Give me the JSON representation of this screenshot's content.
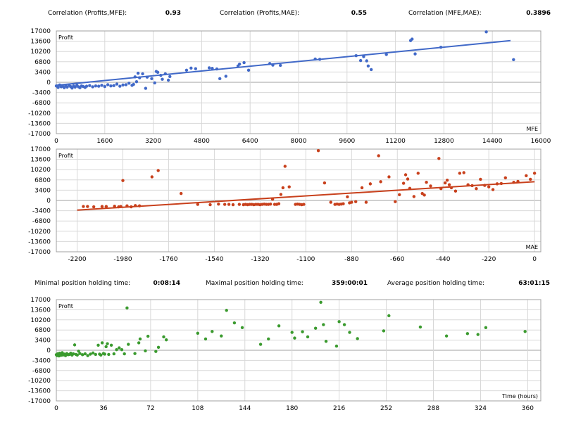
{
  "stats_top": [
    {
      "label": "Correlation (Profits,MFE):",
      "value": "0.93"
    },
    {
      "label": "Correlation (Profits,MAE):",
      "value": "0.55"
    },
    {
      "label": "Correlation (MFE,MAE):",
      "value": "0.3896"
    }
  ],
  "stats_mid": [
    {
      "label": "Minimal position holding time:",
      "value": "0:08:14"
    },
    {
      "label": "Maximal position holding time:",
      "value": "359:00:01"
    },
    {
      "label": "Average position holding time:",
      "value": "63:01:15"
    }
  ],
  "colors": {
    "mfe": "#4169c8",
    "mae": "#c8401c",
    "time": "#3a9a2e",
    "grid": "#d8d8d8",
    "axis": "#a0a0a0"
  },
  "chart_data": [
    {
      "type": "scatter",
      "ylabel": "Profit",
      "xlabel": "MFE",
      "xlim": [
        0,
        16000
      ],
      "ylim": [
        -17000,
        17000
      ],
      "xticks": [
        0,
        1600,
        3200,
        4800,
        6400,
        8000,
        9600,
        11200,
        12800,
        14400,
        16000
      ],
      "yticks": [
        17000,
        13600,
        10200,
        6800,
        3400,
        0,
        -3400,
        -6800,
        -10200,
        -13600,
        -17000
      ],
      "trendline": [
        [
          0,
          -1000
        ],
        [
          15000,
          13800
        ]
      ],
      "points": [
        [
          0,
          -1200
        ],
        [
          60,
          -1700
        ],
        [
          110,
          -900
        ],
        [
          160,
          -1500
        ],
        [
          210,
          -1300
        ],
        [
          260,
          -1800
        ],
        [
          310,
          -1100
        ],
        [
          360,
          -1600
        ],
        [
          420,
          -1000
        ],
        [
          470,
          -1400
        ],
        [
          520,
          -1900
        ],
        [
          570,
          -1200
        ],
        [
          620,
          -1600
        ],
        [
          680,
          -1000
        ],
        [
          730,
          -1500
        ],
        [
          780,
          -1800
        ],
        [
          830,
          -1200
        ],
        [
          890,
          -1400
        ],
        [
          950,
          -1700
        ],
        [
          1000,
          -1300
        ],
        [
          1100,
          -1100
        ],
        [
          1200,
          -1500
        ],
        [
          1300,
          -1200
        ],
        [
          1400,
          -1300
        ],
        [
          1500,
          -1000
        ],
        [
          1600,
          -1400
        ],
        [
          1700,
          -800
        ],
        [
          1800,
          -1200
        ],
        [
          1900,
          -1100
        ],
        [
          2000,
          -600
        ],
        [
          2100,
          -1300
        ],
        [
          2200,
          -900
        ],
        [
          2300,
          -800
        ],
        [
          2400,
          -300
        ],
        [
          2500,
          -1000
        ],
        [
          2550,
          -700
        ],
        [
          2600,
          1800
        ],
        [
          2650,
          200
        ],
        [
          2700,
          3000
        ],
        [
          2750,
          1500
        ],
        [
          2850,
          2800
        ],
        [
          2950,
          -2000
        ],
        [
          3000,
          1700
        ],
        [
          3150,
          1200
        ],
        [
          3250,
          -200
        ],
        [
          3300,
          3600
        ],
        [
          3350,
          3300
        ],
        [
          3450,
          2300
        ],
        [
          3500,
          1000
        ],
        [
          3600,
          2800
        ],
        [
          3700,
          700
        ],
        [
          3750,
          1900
        ],
        [
          4300,
          4000
        ],
        [
          4450,
          4700
        ],
        [
          4600,
          4500
        ],
        [
          5050,
          4800
        ],
        [
          5150,
          4600
        ],
        [
          5300,
          4400
        ],
        [
          5400,
          1200
        ],
        [
          5600,
          2000
        ],
        [
          6000,
          5400
        ],
        [
          6050,
          6000
        ],
        [
          6200,
          6500
        ],
        [
          6350,
          4000
        ],
        [
          7050,
          6200
        ],
        [
          7150,
          5700
        ],
        [
          7400,
          5600
        ],
        [
          8550,
          7700
        ],
        [
          8700,
          7600
        ],
        [
          9900,
          8800
        ],
        [
          10050,
          7200
        ],
        [
          10150,
          8500
        ],
        [
          10250,
          7100
        ],
        [
          10300,
          5400
        ],
        [
          10400,
          4200
        ],
        [
          10900,
          9200
        ],
        [
          11700,
          13800
        ],
        [
          11750,
          14300
        ],
        [
          11850,
          9400
        ],
        [
          12700,
          11600
        ],
        [
          14200,
          16700
        ],
        [
          15100,
          7500
        ]
      ]
    },
    {
      "type": "scatter",
      "ylabel": "Profit",
      "xlabel": "MAE",
      "xlim": [
        -2300,
        30
      ],
      "ylim": [
        -17000,
        17000
      ],
      "xticks": [
        -2200,
        -1980,
        -1760,
        -1540,
        -1320,
        -1100,
        -880,
        -660,
        -440,
        -220,
        0
      ],
      "yticks": [
        17000,
        13600,
        10200,
        6800,
        3400,
        0,
        -3400,
        -6800,
        -10200,
        -13600,
        -17000
      ],
      "trendline": [
        [
          -2200,
          -3200
        ],
        [
          0,
          6200
        ]
      ],
      "points": [
        [
          -2170,
          -2000
        ],
        [
          -2150,
          -2000
        ],
        [
          -2120,
          -2100
        ],
        [
          -2080,
          -2000
        ],
        [
          -2060,
          -2000
        ],
        [
          -2020,
          -1900
        ],
        [
          -2000,
          -2100
        ],
        [
          -1990,
          -2000
        ],
        [
          -1960,
          -1800
        ],
        [
          -1940,
          -2100
        ],
        [
          -1920,
          -1700
        ],
        [
          -1900,
          -1800
        ],
        [
          -1980,
          6600
        ],
        [
          -1840,
          7800
        ],
        [
          -1810,
          9900
        ],
        [
          -1700,
          2300
        ],
        [
          -1620,
          -1300
        ],
        [
          -1560,
          -1400
        ],
        [
          -1520,
          -1200
        ],
        [
          -1490,
          -1300
        ],
        [
          -1470,
          -1300
        ],
        [
          -1450,
          -1400
        ],
        [
          -1420,
          -1300
        ],
        [
          -1400,
          -1400
        ],
        [
          -1390,
          -1300
        ],
        [
          -1380,
          -1400
        ],
        [
          -1370,
          -1300
        ],
        [
          -1360,
          -1300
        ],
        [
          -1350,
          -1400
        ],
        [
          -1340,
          -1300
        ],
        [
          -1330,
          -1300
        ],
        [
          -1320,
          -1400
        ],
        [
          -1310,
          -1300
        ],
        [
          -1300,
          -1200
        ],
        [
          -1290,
          -1300
        ],
        [
          -1280,
          -1300
        ],
        [
          -1270,
          -1200
        ],
        [
          -1260,
          400
        ],
        [
          -1250,
          -1300
        ],
        [
          -1240,
          -1300
        ],
        [
          -1230,
          -1100
        ],
        [
          -1220,
          2000
        ],
        [
          -1210,
          4200
        ],
        [
          -1200,
          11300
        ],
        [
          -1180,
          4500
        ],
        [
          -1150,
          -1300
        ],
        [
          -1140,
          -1200
        ],
        [
          -1130,
          -1300
        ],
        [
          -1120,
          -1400
        ],
        [
          -1110,
          -1300
        ],
        [
          -1040,
          16500
        ],
        [
          -1010,
          5800
        ],
        [
          -980,
          -600
        ],
        [
          -960,
          -1300
        ],
        [
          -950,
          -1200
        ],
        [
          -940,
          -1300
        ],
        [
          -930,
          -1200
        ],
        [
          -920,
          -1100
        ],
        [
          -900,
          1200
        ],
        [
          -890,
          -800
        ],
        [
          -880,
          -600
        ],
        [
          -860,
          -400
        ],
        [
          -830,
          4200
        ],
        [
          -810,
          -600
        ],
        [
          -790,
          5500
        ],
        [
          -750,
          14800
        ],
        [
          -740,
          6200
        ],
        [
          -700,
          7800
        ],
        [
          -670,
          -400
        ],
        [
          -650,
          1900
        ],
        [
          -630,
          5700
        ],
        [
          -620,
          8500
        ],
        [
          -610,
          7100
        ],
        [
          -600,
          4000
        ],
        [
          -580,
          1300
        ],
        [
          -560,
          9000
        ],
        [
          -540,
          2300
        ],
        [
          -530,
          1800
        ],
        [
          -520,
          6000
        ],
        [
          -500,
          4800
        ],
        [
          -460,
          13900
        ],
        [
          -450,
          3900
        ],
        [
          -430,
          5800
        ],
        [
          -420,
          6700
        ],
        [
          -410,
          5200
        ],
        [
          -400,
          4200
        ],
        [
          -380,
          3100
        ],
        [
          -360,
          9000
        ],
        [
          -340,
          9200
        ],
        [
          -320,
          5200
        ],
        [
          -300,
          4900
        ],
        [
          -280,
          3900
        ],
        [
          -260,
          7000
        ],
        [
          -240,
          5000
        ],
        [
          -220,
          4500
        ],
        [
          -200,
          3600
        ],
        [
          -180,
          5500
        ],
        [
          -160,
          5600
        ],
        [
          -140,
          7500
        ],
        [
          -100,
          6000
        ],
        [
          -80,
          6300
        ],
        [
          -40,
          8200
        ],
        [
          -20,
          7000
        ],
        [
          0,
          9000
        ]
      ]
    },
    {
      "type": "scatter",
      "ylabel": "Profit",
      "xlabel": "Time (hours)",
      "xlim": [
        0,
        370
      ],
      "ylim": [
        -17000,
        17000
      ],
      "xticks": [
        0,
        36,
        72,
        108,
        144,
        180,
        216,
        252,
        288,
        324,
        360
      ],
      "yticks": [
        17000,
        13600,
        10200,
        6800,
        3400,
        0,
        -3400,
        -6800,
        -10200,
        -13600,
        -17000
      ],
      "points": [
        [
          0,
          -1500
        ],
        [
          0.5,
          -1800
        ],
        [
          1,
          -1200
        ],
        [
          1.5,
          -1600
        ],
        [
          2,
          -1900
        ],
        [
          2.5,
          -1000
        ],
        [
          3,
          -1400
        ],
        [
          3.5,
          -1700
        ],
        [
          4,
          -1200
        ],
        [
          4.5,
          -800
        ],
        [
          5,
          -1600
        ],
        [
          6,
          -1300
        ],
        [
          7,
          -1800
        ],
        [
          8,
          -1100
        ],
        [
          9,
          -1500
        ],
        [
          10,
          -1400
        ],
        [
          11,
          -1000
        ],
        [
          12,
          -1600
        ],
        [
          13,
          -1200
        ],
        [
          14,
          1800
        ],
        [
          15,
          -1400
        ],
        [
          16,
          -1600
        ],
        [
          17,
          -300
        ],
        [
          18,
          -1100
        ],
        [
          20,
          -1500
        ],
        [
          22,
          -1200
        ],
        [
          24,
          -1800
        ],
        [
          26,
          -1300
        ],
        [
          28,
          -900
        ],
        [
          30,
          -1400
        ],
        [
          32,
          1700
        ],
        [
          33,
          -1300
        ],
        [
          34,
          -1600
        ],
        [
          35,
          2500
        ],
        [
          36,
          -1100
        ],
        [
          37,
          -1300
        ],
        [
          38,
          1200
        ],
        [
          39,
          2200
        ],
        [
          40,
          -1400
        ],
        [
          42,
          1700
        ],
        [
          44,
          -1200
        ],
        [
          46,
          200
        ],
        [
          48,
          800
        ],
        [
          50,
          200
        ],
        [
          52,
          -1200
        ],
        [
          54,
          14200
        ],
        [
          55,
          2000
        ],
        [
          60,
          -1100
        ],
        [
          63,
          2500
        ],
        [
          64,
          3800
        ],
        [
          68,
          -200
        ],
        [
          70,
          4700
        ],
        [
          76,
          -400
        ],
        [
          78,
          1000
        ],
        [
          82,
          4500
        ],
        [
          84,
          3500
        ],
        [
          108,
          5700
        ],
        [
          114,
          3800
        ],
        [
          119,
          6300
        ],
        [
          126,
          4800
        ],
        [
          130,
          13400
        ],
        [
          136,
          9200
        ],
        [
          142,
          7600
        ],
        [
          156,
          2000
        ],
        [
          162,
          3800
        ],
        [
          170,
          8200
        ],
        [
          180,
          6000
        ],
        [
          182,
          4100
        ],
        [
          188,
          6200
        ],
        [
          192,
          4500
        ],
        [
          198,
          7400
        ],
        [
          202,
          16100
        ],
        [
          204,
          8600
        ],
        [
          206,
          3000
        ],
        [
          214,
          1400
        ],
        [
          216,
          9600
        ],
        [
          220,
          8600
        ],
        [
          224,
          6000
        ],
        [
          230,
          3900
        ],
        [
          250,
          6500
        ],
        [
          254,
          11600
        ],
        [
          278,
          7800
        ],
        [
          298,
          4800
        ],
        [
          314,
          5600
        ],
        [
          322,
          5300
        ],
        [
          328,
          7600
        ],
        [
          358,
          6300
        ]
      ]
    }
  ]
}
